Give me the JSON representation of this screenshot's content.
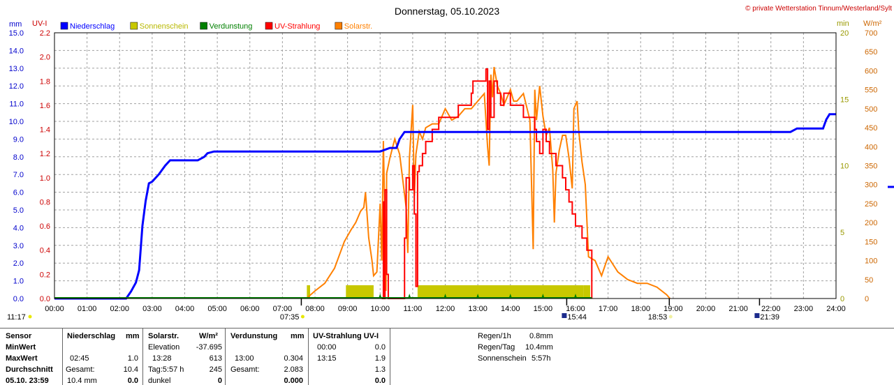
{
  "header": {
    "title": "Donnerstag, 05.10.2023",
    "copyright": "© private Wetterstation Tinnum/Westerland/Sylt",
    "left_unit_mm": "mm",
    "left_unit_uv": "UV-I",
    "right_unit_min": "min",
    "right_unit_wm2": "W/m²"
  },
  "colors": {
    "precip": "#0000ff",
    "sunshine": "#c8c800",
    "evaporation": "#008000",
    "uv": "#ff0000",
    "solar": "#ff8000"
  },
  "chart_data": {
    "type": "line",
    "x_unit": "hours",
    "xlim": [
      0,
      24
    ],
    "x_ticks": [
      "00:00",
      "01:00",
      "02:00",
      "03:00",
      "04:00",
      "05:00",
      "06:00",
      "07:00",
      "08:00",
      "09:00",
      "10:00",
      "11:00",
      "12:00",
      "13:00",
      "14:00",
      "15:00",
      "16:00",
      "17:00",
      "18:00",
      "19:00",
      "20:00",
      "21:00",
      "22:00",
      "23:00",
      "24:00"
    ],
    "axes": {
      "mm": {
        "range": [
          0,
          15
        ],
        "ticks": [
          "0.0",
          "1.0",
          "2.0",
          "3.0",
          "4.0",
          "5.0",
          "6.0",
          "7.0",
          "8.0",
          "9.0",
          "10.0",
          "11.0",
          "12.0",
          "13.0",
          "14.0",
          "15.0"
        ]
      },
      "uv": {
        "range": [
          0,
          2.2
        ],
        "ticks": [
          "0.0",
          "0.2",
          "0.4",
          "0.6",
          "0.8",
          "1.0",
          "1.2",
          "1.4",
          "1.6",
          "1.8",
          "2.0",
          "2.2"
        ]
      },
      "min": {
        "range": [
          0,
          20
        ],
        "ticks": [
          "0",
          "5",
          "10",
          "15",
          "20"
        ]
      },
      "wm2": {
        "range": [
          0,
          700
        ],
        "ticks": [
          "0",
          "50",
          "100",
          "150",
          "200",
          "250",
          "300",
          "350",
          "400",
          "450",
          "500",
          "550",
          "600",
          "650",
          "700"
        ]
      }
    },
    "grid": true,
    "legend": {
      "position": "top-left",
      "entries": [
        {
          "label": "Niederschlag",
          "color": "#0000ff"
        },
        {
          "label": "Sonnenschein",
          "color": "#c8c800"
        },
        {
          "label": "Verdunstung",
          "color": "#008000"
        },
        {
          "label": "UV-Strahlung",
          "color": "#ff0000"
        },
        {
          "label": "Solarstr.",
          "color": "#ff8000"
        }
      ]
    },
    "series": [
      {
        "name": "Niederschlag",
        "axis": "mm",
        "x": [
          0,
          2.2,
          2.35,
          2.5,
          2.6,
          2.7,
          2.8,
          2.9,
          3.0,
          3.2,
          3.4,
          3.55,
          3.65,
          4.4,
          4.6,
          4.7,
          4.9,
          10.0,
          10.3,
          10.5,
          10.6,
          10.75,
          22.6,
          22.8,
          23.6,
          23.7,
          23.8,
          24.0
        ],
        "y": [
          0,
          0,
          0.4,
          0.9,
          1.6,
          4.1,
          5.5,
          6.5,
          6.6,
          7.0,
          7.5,
          7.8,
          7.8,
          7.8,
          8.0,
          8.2,
          8.3,
          8.3,
          8.5,
          8.5,
          9.0,
          9.4,
          9.4,
          9.6,
          9.6,
          10.1,
          10.4,
          10.4
        ]
      },
      {
        "name": "Solarstr.",
        "axis": "wm2",
        "x": [
          7.75,
          7.8,
          8.0,
          8.3,
          8.6,
          8.9,
          9.1,
          9.25,
          9.4,
          9.5,
          9.55,
          9.65,
          9.75,
          9.8,
          9.9,
          10.0,
          10.05,
          10.1,
          10.15,
          10.18,
          10.2,
          10.3,
          10.45,
          10.6,
          10.8,
          10.85,
          10.9,
          11.0,
          11.05,
          11.1,
          11.2,
          11.3,
          11.4,
          11.6,
          11.8,
          12.0,
          12.2,
          12.4,
          12.6,
          12.8,
          13.0,
          13.2,
          13.3,
          13.35,
          13.4,
          13.45,
          13.5,
          13.6,
          13.7,
          13.8,
          13.9,
          14.0,
          14.1,
          14.2,
          14.4,
          14.6,
          14.7,
          14.75,
          14.8,
          14.9,
          15.0,
          15.1,
          15.2,
          15.3,
          15.35,
          15.4,
          15.5,
          15.6,
          15.7,
          15.8,
          15.9,
          15.95,
          16.05,
          16.1,
          16.2,
          16.3,
          16.4,
          16.6,
          16.8,
          17.0,
          17.3,
          17.6,
          17.9,
          18.2,
          18.5,
          18.8,
          18.9
        ],
        "y": [
          0,
          5,
          20,
          40,
          80,
          150,
          180,
          200,
          230,
          240,
          280,
          160,
          100,
          60,
          70,
          250,
          100,
          415,
          200,
          20,
          330,
          370,
          420,
          380,
          240,
          120,
          370,
          510,
          270,
          380,
          440,
          420,
          450,
          460,
          460,
          500,
          470,
          480,
          500,
          500,
          520,
          540,
          400,
          350,
          590,
          530,
          610,
          560,
          540,
          510,
          530,
          550,
          520,
          520,
          540,
          470,
          130,
          550,
          470,
          560,
          480,
          430,
          450,
          340,
          200,
          330,
          390,
          430,
          430,
          370,
          290,
          500,
          520,
          440,
          360,
          300,
          110,
          100,
          60,
          110,
          70,
          50,
          40,
          40,
          30,
          10,
          0
        ]
      },
      {
        "name": "UV-Strahlung",
        "axis": "uv",
        "x": [
          10.05,
          10.1,
          10.12,
          10.15,
          10.2,
          10.25,
          10.7,
          10.75,
          10.8,
          10.9,
          11.0,
          11.05,
          11.1,
          11.15,
          11.2,
          11.3,
          11.4,
          11.5,
          11.6,
          11.7,
          11.8,
          12.0,
          12.2,
          12.4,
          12.6,
          12.8,
          12.85,
          13.0,
          13.2,
          13.25,
          13.3,
          13.35,
          13.4,
          13.5,
          13.6,
          13.7,
          13.8,
          14.0,
          14.2,
          14.4,
          14.6,
          14.75,
          14.8,
          14.9,
          15.0,
          15.1,
          15.2,
          15.3,
          15.4,
          15.5,
          15.6,
          15.7,
          15.8,
          15.9,
          16.0,
          16.1,
          16.2,
          16.35,
          16.45,
          16.5
        ],
        "y": [
          0,
          0.8,
          0,
          0.9,
          0.2,
          0,
          0,
          0.5,
          1.0,
          0.9,
          1.1,
          0.7,
          0.1,
          1.05,
          1.1,
          1.2,
          1.3,
          1.3,
          1.4,
          1.4,
          1.5,
          1.5,
          1.5,
          1.6,
          1.6,
          1.7,
          1.8,
          1.8,
          1.8,
          1.9,
          1.4,
          1.8,
          1.5,
          1.8,
          1.7,
          1.6,
          1.7,
          1.6,
          1.6,
          1.5,
          1.5,
          1.4,
          1.3,
          1.2,
          1.4,
          1.3,
          1.2,
          1.2,
          1.1,
          1.1,
          1.0,
          0.9,
          0.8,
          0.7,
          0.6,
          0.6,
          0.5,
          0.4,
          0.4,
          0
        ]
      },
      {
        "name": "Sonnenschein",
        "axis": "min",
        "bars": [
          [
            7.75,
            7.85,
            1.0
          ],
          [
            8.95,
            9.8,
            1.0
          ],
          [
            11.15,
            16.25,
            1.0
          ],
          [
            16.25,
            16.45,
            1.0
          ]
        ]
      },
      {
        "name": "Verdunstung",
        "axis": "mm",
        "markers_x": [
          10.0,
          10.9,
          12.0,
          13.0,
          14.0,
          15.0,
          16.0
        ]
      }
    ],
    "time_markers": [
      {
        "label": "11:17",
        "x_label_pos": "left",
        "kind": "sun"
      },
      {
        "label": "07:35",
        "x": 7.58,
        "kind": "sunrise"
      },
      {
        "label": "15:44",
        "x": 15.73,
        "kind": "moon"
      },
      {
        "label": "18:53",
        "x": 18.88,
        "kind": "sunset"
      },
      {
        "label": "21:39",
        "x": 21.65,
        "kind": "moon"
      }
    ]
  },
  "stats": {
    "row_labels": [
      "Sensor",
      "MinWert",
      "MaxWert",
      "Durchschnitt",
      "05.10. 23:59"
    ],
    "niederschlag": {
      "header": "Niederschlag",
      "unit": "mm",
      "max_time": "02:45",
      "max_val": "1.0",
      "avg_label": "Gesamt:",
      "avg_val": "10.4",
      "last_val": "10.4 mm",
      "last_sum": "0.0"
    },
    "solar": {
      "header": "Solarstr.",
      "unit": "W/m²",
      "min_label": "Elevation",
      "min_val": "-37.695",
      "max_time": "13:28",
      "max_val": "613",
      "avg_label": "Tag:5:57 h",
      "avg_val": "245",
      "last_label": "dunkel",
      "last_val": "0"
    },
    "verdunstung": {
      "header": "Verdunstung",
      "unit": "mm",
      "max_time": "13:00",
      "max_val": "0.304",
      "avg_label": "Gesamt:",
      "avg_val": "2.083",
      "last_val": "0.000"
    },
    "uv": {
      "header": "UV-Strahlung UV-I",
      "min_time": "00:00",
      "min_val": "0.0",
      "max_time": "13:15",
      "max_val": "1.9",
      "avg_val": "1.3",
      "last_val": "0.0"
    },
    "extra": [
      {
        "label": "Regen/1h",
        "value": "0.8mm"
      },
      {
        "label": "Regen/Tag",
        "value": "10.4mm"
      },
      {
        "label": "Sonnenschein",
        "value": "5:57h"
      }
    ]
  }
}
